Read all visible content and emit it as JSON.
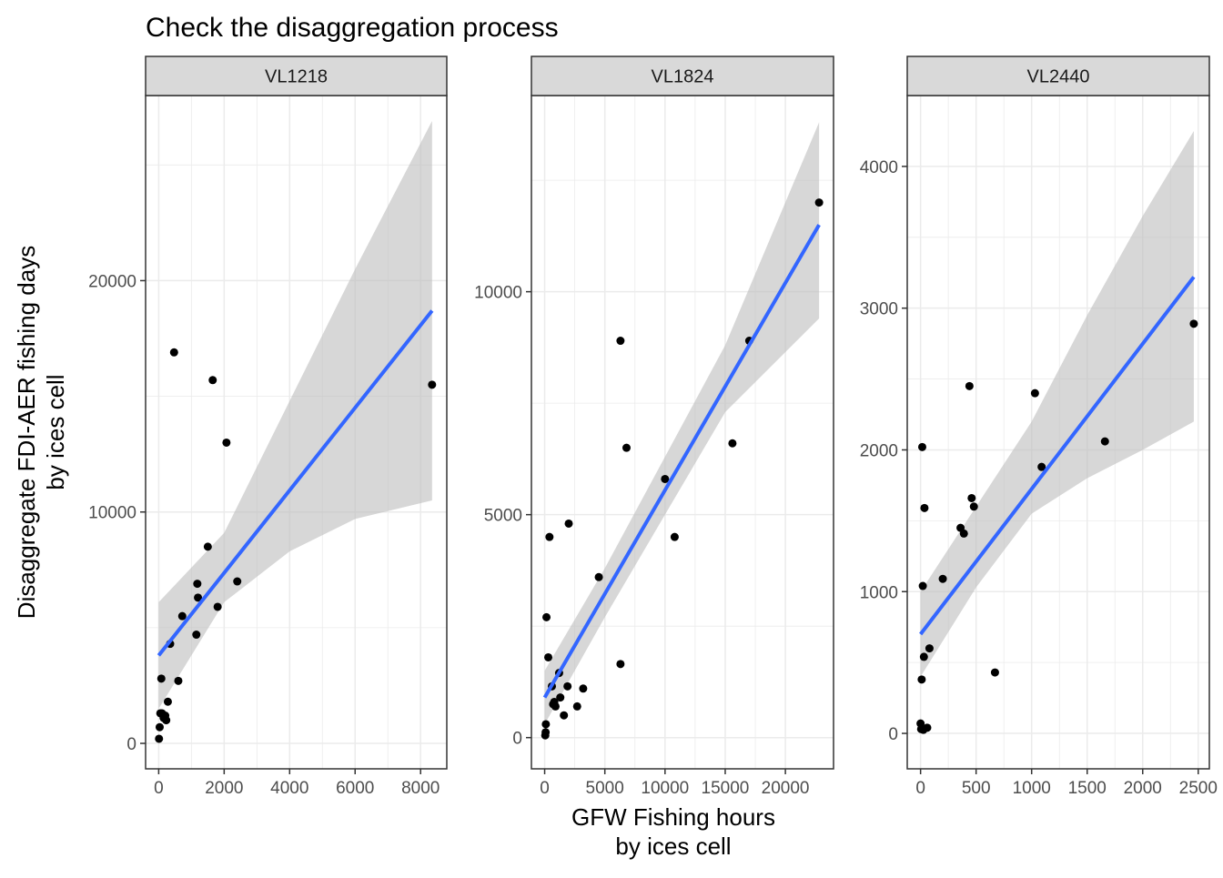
{
  "chart_data": {
    "type": "scatter",
    "title": "Check the disaggregation process",
    "xlabel": "GFW Fishing hours\nby ices cell",
    "ylabel": "Disaggregate FDI-AER fishing days\nby ices cell",
    "smooth": "linear fit with confidence band",
    "grid": true,
    "colors": {
      "points": "#000000",
      "fit_line": "#3366FF",
      "ci_band": "#bdbdbd",
      "strip_bg": "#d9d9d9",
      "grid": "#ebebeb"
    },
    "panels": [
      {
        "label": "VL1218",
        "xlim": [
          -400,
          8800
        ],
        "ylim": [
          -1100,
          28000
        ],
        "x_ticks": [
          0,
          2000,
          4000,
          6000,
          8000
        ],
        "x_tick_labels": [
          "0",
          "2000",
          "4000",
          "6000",
          "8000"
        ],
        "y_ticks": [
          0,
          10000,
          20000
        ],
        "y_tick_labels": [
          "0",
          "10000",
          "20000"
        ],
        "points": [
          {
            "x": 10,
            "y": 200
          },
          {
            "x": 30,
            "y": 700
          },
          {
            "x": 50,
            "y": 1300
          },
          {
            "x": 80,
            "y": 2800
          },
          {
            "x": 100,
            "y": 1300
          },
          {
            "x": 150,
            "y": 1100
          },
          {
            "x": 200,
            "y": 1200
          },
          {
            "x": 230,
            "y": 1000
          },
          {
            "x": 280,
            "y": 1800
          },
          {
            "x": 350,
            "y": 4300
          },
          {
            "x": 470,
            "y": 16900
          },
          {
            "x": 600,
            "y": 2700
          },
          {
            "x": 720,
            "y": 5500
          },
          {
            "x": 1150,
            "y": 4700
          },
          {
            "x": 1180,
            "y": 6900
          },
          {
            "x": 1200,
            "y": 6300
          },
          {
            "x": 1500,
            "y": 8500
          },
          {
            "x": 1650,
            "y": 15700
          },
          {
            "x": 1800,
            "y": 5900
          },
          {
            "x": 2070,
            "y": 13000
          },
          {
            "x": 2400,
            "y": 7000
          },
          {
            "x": 8350,
            "y": 15500
          }
        ],
        "fit": {
          "x": [
            0,
            8350
          ],
          "y": [
            3800,
            18700
          ]
        },
        "band": {
          "x": [
            0,
            2000,
            4000,
            6000,
            8350
          ],
          "upper": [
            6100,
            9100,
            14800,
            20500,
            26900
          ],
          "lower": [
            1500,
            6100,
            8300,
            9700,
            10500
          ]
        }
      },
      {
        "label": "VL1824",
        "xlim": [
          -1100,
          24000
        ],
        "ylim": [
          -700,
          14400
        ],
        "x_ticks": [
          0,
          5000,
          10000,
          15000,
          20000
        ],
        "x_tick_labels": [
          "0",
          "5000",
          "10000",
          "15000",
          "20000"
        ],
        "y_ticks": [
          0,
          5000,
          10000
        ],
        "y_tick_labels": [
          "0",
          "5000",
          "10000"
        ],
        "points": [
          {
            "x": 50,
            "y": 50
          },
          {
            "x": 80,
            "y": 120
          },
          {
            "x": 100,
            "y": 300
          },
          {
            "x": 150,
            "y": 2700
          },
          {
            "x": 300,
            "y": 1800
          },
          {
            "x": 400,
            "y": 4500
          },
          {
            "x": 600,
            "y": 1150
          },
          {
            "x": 700,
            "y": 750
          },
          {
            "x": 800,
            "y": 800
          },
          {
            "x": 900,
            "y": 700
          },
          {
            "x": 1200,
            "y": 1450
          },
          {
            "x": 1300,
            "y": 900
          },
          {
            "x": 1600,
            "y": 500
          },
          {
            "x": 1900,
            "y": 1150
          },
          {
            "x": 2000,
            "y": 4800
          },
          {
            "x": 2700,
            "y": 700
          },
          {
            "x": 3200,
            "y": 1100
          },
          {
            "x": 4500,
            "y": 3600
          },
          {
            "x": 6300,
            "y": 1650
          },
          {
            "x": 6300,
            "y": 8900
          },
          {
            "x": 6800,
            "y": 6500
          },
          {
            "x": 10000,
            "y": 5800
          },
          {
            "x": 10800,
            "y": 4500
          },
          {
            "x": 15600,
            "y": 6600
          },
          {
            "x": 17000,
            "y": 8900
          },
          {
            "x": 22800,
            "y": 12000
          }
        ],
        "fit": {
          "x": [
            0,
            22800
          ],
          "y": [
            900,
            11500
          ]
        },
        "band": {
          "x": [
            0,
            5000,
            10000,
            15000,
            22800
          ],
          "upper": [
            1500,
            3800,
            6300,
            8800,
            13800
          ],
          "lower": [
            300,
            2700,
            5000,
            7300,
            9400
          ]
        }
      },
      {
        "label": "VL2440",
        "xlim": [
          -120,
          2600
        ],
        "ylim": [
          -250,
          4500
        ],
        "x_ticks": [
          0,
          500,
          1000,
          1500,
          2000,
          2500
        ],
        "x_tick_labels": [
          "0",
          "500",
          "1000",
          "1500",
          "2000",
          "2500"
        ],
        "y_ticks": [
          0,
          1000,
          2000,
          3000,
          4000
        ],
        "y_tick_labels": [
          "0",
          "1000",
          "2000",
          "3000",
          "4000"
        ],
        "points": [
          {
            "x": 0,
            "y": 70
          },
          {
            "x": 5,
            "y": 30
          },
          {
            "x": 10,
            "y": 380
          },
          {
            "x": 15,
            "y": 2020
          },
          {
            "x": 20,
            "y": 1040
          },
          {
            "x": 25,
            "y": 25
          },
          {
            "x": 30,
            "y": 540
          },
          {
            "x": 35,
            "y": 1590
          },
          {
            "x": 60,
            "y": 40
          },
          {
            "x": 80,
            "y": 600
          },
          {
            "x": 200,
            "y": 1090
          },
          {
            "x": 360,
            "y": 1450
          },
          {
            "x": 390,
            "y": 1410
          },
          {
            "x": 440,
            "y": 2450
          },
          {
            "x": 460,
            "y": 1660
          },
          {
            "x": 480,
            "y": 1600
          },
          {
            "x": 670,
            "y": 430
          },
          {
            "x": 1030,
            "y": 2400
          },
          {
            "x": 1090,
            "y": 1880
          },
          {
            "x": 1660,
            "y": 2060
          },
          {
            "x": 2460,
            "y": 2890
          }
        ],
        "fit": {
          "x": [
            0,
            2460
          ],
          "y": [
            700,
            3220
          ]
        },
        "band": {
          "x": [
            0,
            500,
            1000,
            1500,
            2000,
            2460
          ],
          "upper": [
            1000,
            1600,
            2200,
            2950,
            3650,
            4250
          ],
          "lower": [
            400,
            1030,
            1550,
            1800,
            2000,
            2200
          ]
        }
      }
    ]
  }
}
